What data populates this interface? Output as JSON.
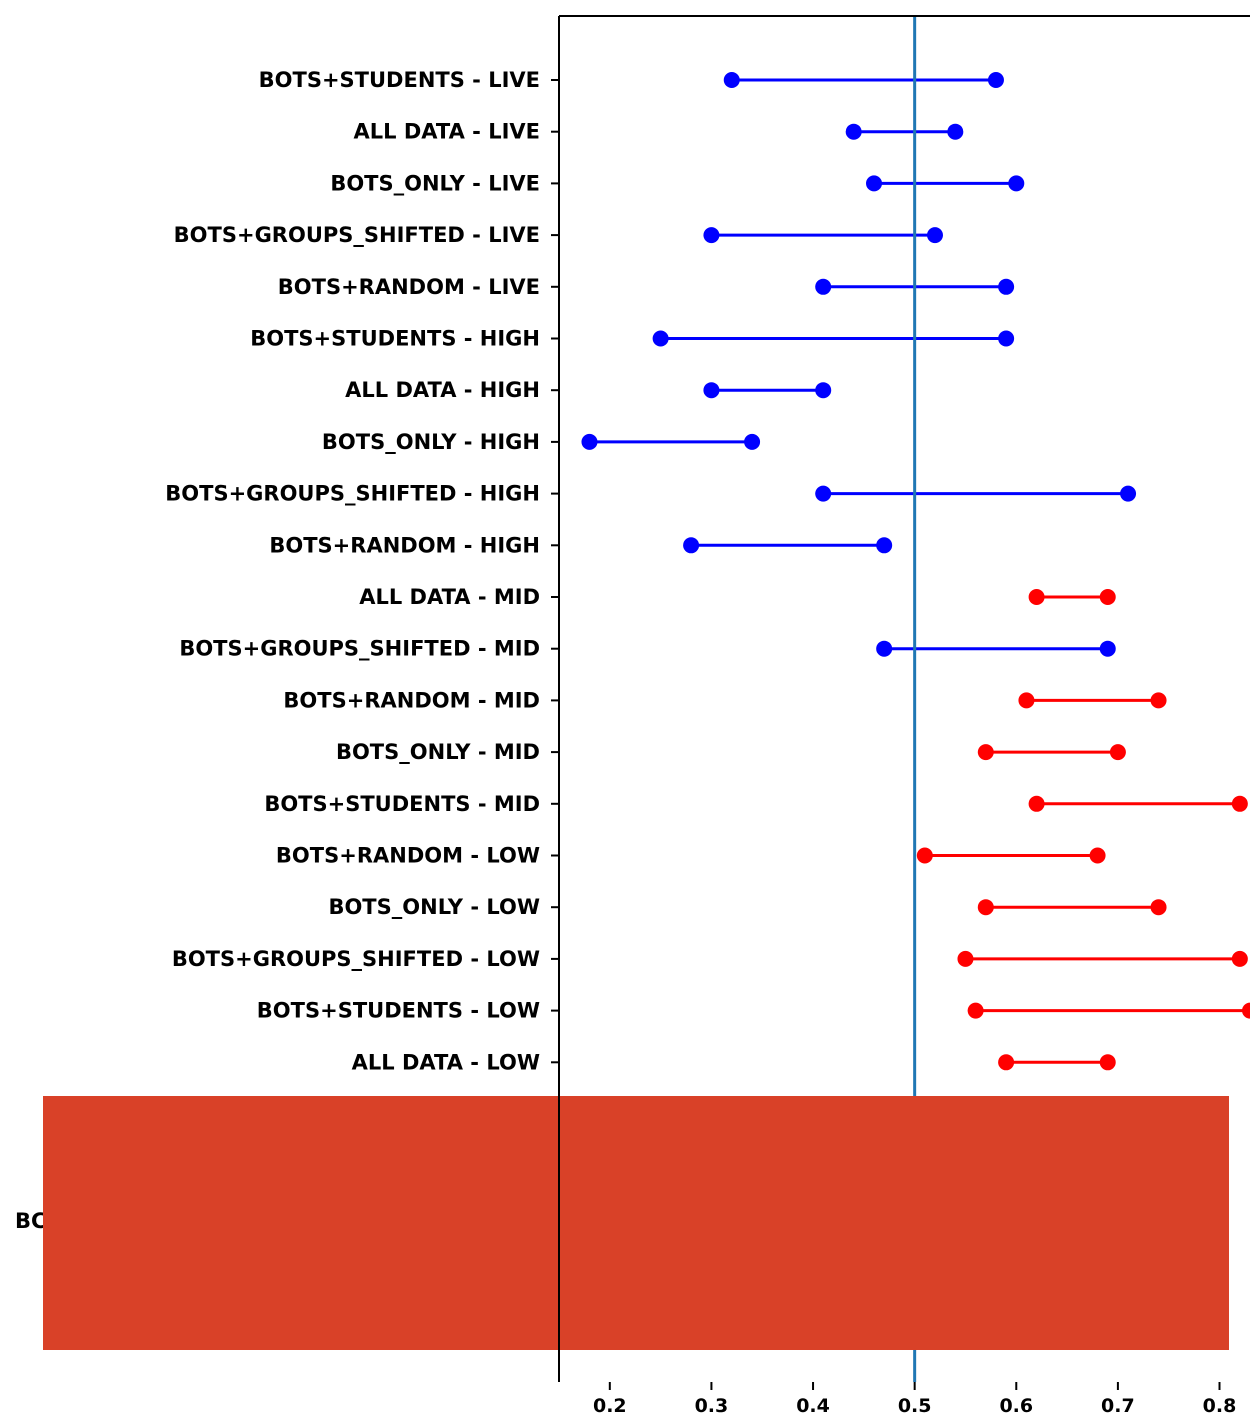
{
  "chart_data": {
    "type": "dumbbell",
    "xlim": [
      0.15,
      0.83
    ],
    "xticks": [
      0.2,
      0.3,
      0.4,
      0.5,
      0.6,
      0.7,
      0.8
    ],
    "xtick_labels": [
      "0.2",
      "0.3",
      "0.4",
      "0.5",
      "0.6",
      "0.7",
      "0.8"
    ],
    "reference_line_x": 0.5,
    "grid": false,
    "colors": {
      "blue": "#0000ff",
      "red": "#ff0000",
      "reference_line": "#1f77b4",
      "occluding_block": "#d94128"
    },
    "rows": [
      {
        "label": "BOTS+STUDENTS - LIVE",
        "low": 0.32,
        "high": 0.58,
        "color": "blue"
      },
      {
        "label": "ALL DATA - LIVE",
        "low": 0.44,
        "high": 0.54,
        "color": "blue"
      },
      {
        "label": "BOTS_ONLY - LIVE",
        "low": 0.46,
        "high": 0.6,
        "color": "blue"
      },
      {
        "label": "BOTS+GROUPS_SHIFTED - LIVE",
        "low": 0.3,
        "high": 0.52,
        "color": "blue"
      },
      {
        "label": "BOTS+RANDOM - LIVE",
        "low": 0.41,
        "high": 0.59,
        "color": "blue"
      },
      {
        "label": "BOTS+STUDENTS - HIGH",
        "low": 0.25,
        "high": 0.59,
        "color": "blue"
      },
      {
        "label": "ALL DATA - HIGH",
        "low": 0.3,
        "high": 0.41,
        "color": "blue"
      },
      {
        "label": "BOTS_ONLY - HIGH",
        "low": 0.18,
        "high": 0.34,
        "color": "blue"
      },
      {
        "label": "BOTS+GROUPS_SHIFTED - HIGH",
        "low": 0.41,
        "high": 0.71,
        "color": "blue"
      },
      {
        "label": "BOTS+RANDOM - HIGH",
        "low": 0.28,
        "high": 0.47,
        "color": "blue"
      },
      {
        "label": "ALL DATA - MID",
        "low": 0.62,
        "high": 0.69,
        "color": "red"
      },
      {
        "label": "BOTS+GROUPS_SHIFTED - MID",
        "low": 0.47,
        "high": 0.69,
        "color": "blue"
      },
      {
        "label": "BOTS+RANDOM - MID",
        "low": 0.61,
        "high": 0.74,
        "color": "red"
      },
      {
        "label": "BOTS_ONLY - MID",
        "low": 0.57,
        "high": 0.7,
        "color": "red"
      },
      {
        "label": "BOTS+STUDENTS - MID",
        "low": 0.62,
        "high": 0.82,
        "color": "red"
      },
      {
        "label": "BOTS+RANDOM - LOW",
        "low": 0.51,
        "high": 0.68,
        "color": "red"
      },
      {
        "label": "BOTS_ONLY - LOW",
        "low": 0.57,
        "high": 0.74,
        "color": "red"
      },
      {
        "label": "BOTS+GROUPS_SHIFTED - LOW",
        "low": 0.55,
        "high": 0.82,
        "color": "red"
      },
      {
        "label": "BOTS+STUDENTS - LOW",
        "low": 0.56,
        "high": 0.83,
        "color": "red"
      },
      {
        "label": "ALL DATA - LOW",
        "low": 0.59,
        "high": 0.69,
        "color": "red"
      }
    ],
    "partial_hidden_label": "BC"
  }
}
